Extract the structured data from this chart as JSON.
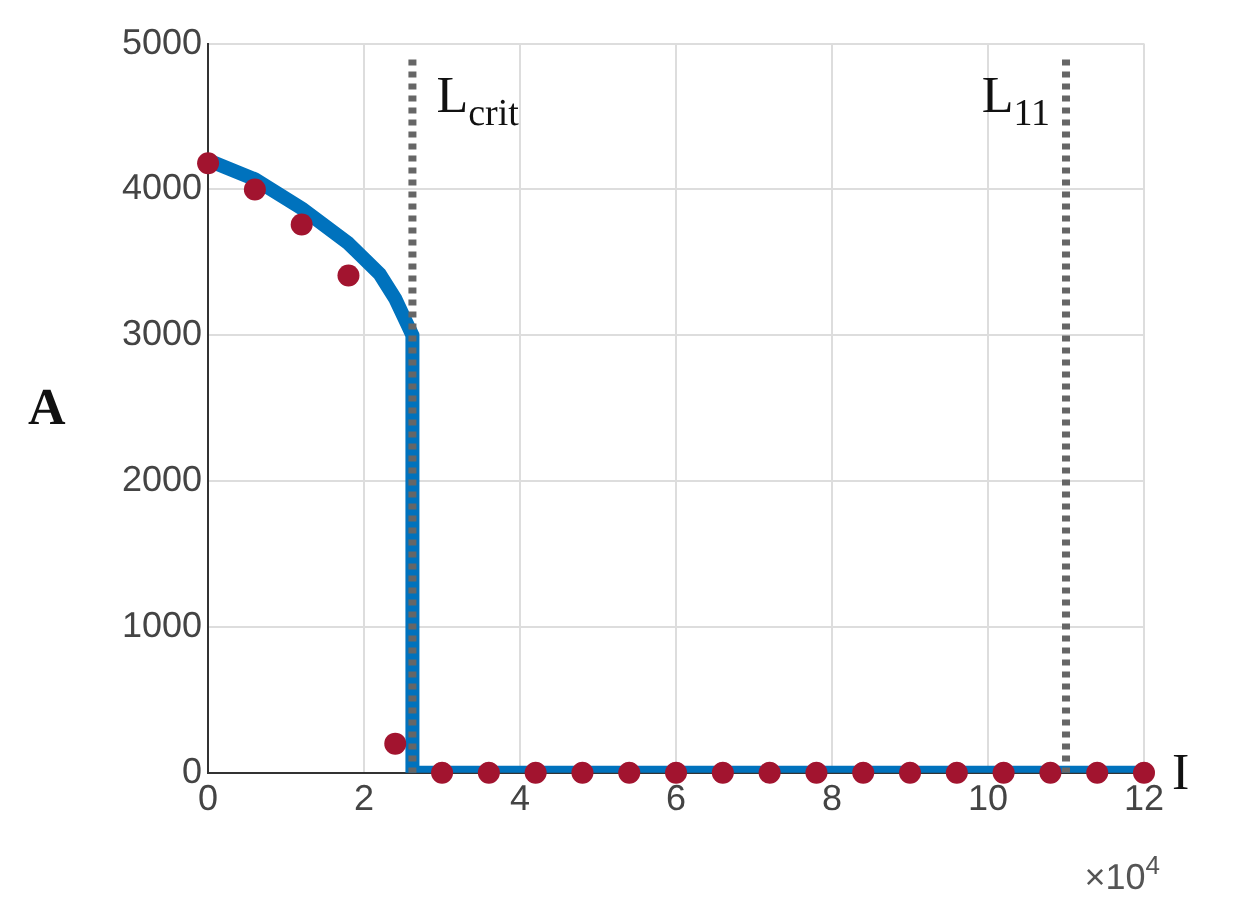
{
  "chart_data": {
    "type": "scatter",
    "xlabel": "I",
    "ylabel": "A",
    "xlim": [
      0,
      12
    ],
    "xticks": [
      0,
      2,
      4,
      6,
      8,
      10,
      12
    ],
    "ylim": [
      0,
      5000
    ],
    "yticks": [
      0,
      1000,
      2000,
      3000,
      4000,
      5000
    ],
    "grid": true,
    "legend": false,
    "marker": "circle",
    "series": [
      {
        "type": "line",
        "marker": "none",
        "color": "#0072bd",
        "x": [
          0,
          0.6,
          1.2,
          1.8,
          2.2,
          2.4,
          2.55,
          2.62,
          2.62,
          12
        ],
        "values": [
          4200,
          4070,
          3870,
          3630,
          3420,
          3250,
          3080,
          3000,
          0,
          0
        ]
      },
      {
        "color": "#a2142f",
        "x": [
          0,
          0.6,
          1.2,
          1.8,
          2.4,
          3.0,
          3.6,
          4.2,
          4.8,
          5.4,
          6.0,
          6.6,
          7.2,
          7.8,
          8.4,
          9.0,
          9.6,
          10.2,
          10.8,
          11.4,
          12.0
        ],
        "values": [
          4180,
          4000,
          3760,
          3410,
          200,
          0,
          0,
          0,
          0,
          0,
          0,
          0,
          0,
          0,
          0,
          0,
          0,
          0,
          0,
          0,
          0
        ]
      }
    ],
    "ref_lines": [
      {
        "axis": "x",
        "value": 2.62,
        "label": "L$_{crit}$",
        "color": "#666666",
        "line_style": "dotted"
      },
      {
        "axis": "x",
        "value": 11,
        "label": "L$_{11}$",
        "color": "#666666",
        "line_style": "dotted"
      }
    ],
    "annotations": [
      "×10$^{4}$"
    ]
  }
}
